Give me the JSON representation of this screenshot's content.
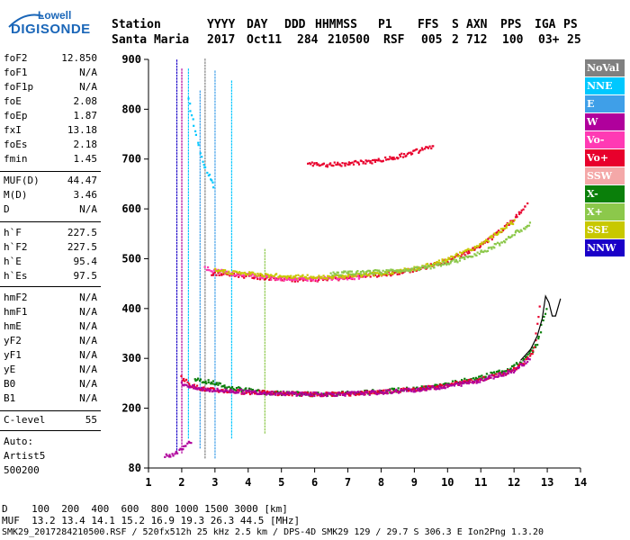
{
  "logo": {
    "line1": "Lowell",
    "line2": "DIGISONDE"
  },
  "header": {
    "labels": [
      "Station",
      "YYYY",
      "DAY",
      "DDD",
      "HHMMSS",
      "P1",
      "FFS",
      "S",
      "AXN",
      "PPS",
      "IGA",
      "PS"
    ],
    "values": [
      "Santa Maria",
      "2017",
      "Oct11",
      "284",
      "210500",
      "RSF",
      "005",
      "2",
      "712",
      "100",
      "03+",
      "25"
    ]
  },
  "params_group1": [
    {
      "label": "foF2",
      "value": "12.850"
    },
    {
      "label": "foF1",
      "value": "N/A"
    },
    {
      "label": "foF1p",
      "value": "N/A"
    },
    {
      "label": "foE",
      "value": "2.08"
    },
    {
      "label": "foEp",
      "value": "1.87"
    },
    {
      "label": "fxI",
      "value": "13.18"
    },
    {
      "label": "foEs",
      "value": "2.18"
    },
    {
      "label": "fmin",
      "value": "1.45"
    }
  ],
  "params_group2": [
    {
      "label": "MUF(D)",
      "value": "44.47"
    },
    {
      "label": "M(D)",
      "value": "3.46"
    },
    {
      "label": "D",
      "value": "N/A"
    }
  ],
  "params_group3": [
    {
      "label": "h`F",
      "value": "227.5"
    },
    {
      "label": "h`F2",
      "value": "227.5"
    },
    {
      "label": "h`E",
      "value": "95.4"
    },
    {
      "label": "h`Es",
      "value": "97.5"
    }
  ],
  "params_group4": [
    {
      "label": "hmF2",
      "value": "N/A"
    },
    {
      "label": "hmF1",
      "value": "N/A"
    },
    {
      "label": "hmE",
      "value": "N/A"
    },
    {
      "label": "yF2",
      "value": "N/A"
    },
    {
      "label": "yF1",
      "value": "N/A"
    },
    {
      "label": "yE",
      "value": "N/A"
    },
    {
      "label": "B0",
      "value": "N/A"
    },
    {
      "label": "B1",
      "value": "N/A"
    }
  ],
  "clevel": {
    "label": "C-level",
    "value": "55"
  },
  "auto": {
    "line1": "Auto:",
    "line2": "Artist5",
    "line3": "500200"
  },
  "legend": [
    {
      "label": "NoVal",
      "color": "#808080"
    },
    {
      "label": "NNE",
      "color": "#00c8ff"
    },
    {
      "label": "E",
      "color": "#3f9fe8"
    },
    {
      "label": "W",
      "color": "#b0009c"
    },
    {
      "label": "Vo-",
      "color": "#ff3ab4"
    },
    {
      "label": "Vo+",
      "color": "#e8002c"
    },
    {
      "label": "SSW",
      "color": "#f4a8a8"
    },
    {
      "label": "X-",
      "color": "#0a7f0a"
    },
    {
      "label": "X+",
      "color": "#8cc84b"
    },
    {
      "label": "SSE",
      "color": "#c8c800"
    },
    {
      "label": "NNW",
      "color": "#1a00c8"
    }
  ],
  "bottom": {
    "line1": "D    100  200  400  600  800 1000 1500 3000 [km]",
    "line2": "MUF  13.2 13.4 14.1 15.2 16.9 19.3 26.3 44.5 [MHz]",
    "line3": "SMK29_2017284210500.RSF / 520fx512h 25 kHz 2.5 km / DPS-4D SMK29 129 / 29.7 S 306.3 E Ion2Png 1.3.20"
  },
  "chart_data": {
    "type": "scatter",
    "xlabel": "",
    "ylabel": "",
    "xlim": [
      1,
      14
    ],
    "ylim": [
      80,
      900
    ],
    "xticks": [
      1,
      2,
      3,
      4,
      5,
      6,
      7,
      8,
      9,
      10,
      11,
      12,
      13,
      14
    ],
    "yticks": [
      80,
      200,
      300,
      400,
      500,
      600,
      700,
      800,
      900
    ],
    "grid": false,
    "legend_position": "right",
    "series": [
      {
        "name": "X-",
        "color": "#0a7f0a",
        "x": [
          2.4,
          3.0,
          3.5,
          4.0,
          4.5,
          5.0,
          6.0,
          7.0,
          8.0,
          9.0,
          10.0,
          11.0,
          11.8,
          12.3,
          12.7,
          13.0
        ],
        "y": [
          258,
          250,
          240,
          236,
          232,
          230,
          228,
          230,
          234,
          239,
          248,
          262,
          278,
          296,
          330,
          410
        ]
      },
      {
        "name": "Vo+",
        "color": "#e8002c",
        "x": [
          2.0,
          2.3,
          2.7,
          3.2,
          4.0,
          5.0,
          6.0,
          7.0,
          8.0,
          9.0,
          10.0,
          11.0,
          11.8,
          12.3,
          12.6,
          12.8
        ],
        "y": [
          262,
          245,
          238,
          235,
          232,
          230,
          228,
          229,
          233,
          238,
          246,
          258,
          272,
          290,
          320,
          410
        ]
      },
      {
        "name": "W",
        "color": "#b0009c",
        "x": [
          2.0,
          2.4,
          3.0,
          4.0,
          5.0,
          6.0,
          7.0,
          8.0,
          9.0,
          10.0,
          11.0,
          12.0,
          12.5
        ],
        "y": [
          250,
          240,
          236,
          233,
          230,
          228,
          229,
          232,
          237,
          244,
          256,
          276,
          300
        ]
      },
      {
        "name": "Vo+",
        "color": "#e8002c",
        "x": [
          2.9,
          3.5,
          4.0,
          4.5,
          5.0,
          5.5,
          6.0,
          6.5,
          7.0,
          7.5,
          8.0,
          8.5,
          9.0,
          9.5,
          10.0,
          10.5,
          11.0,
          11.5,
          12.0,
          12.4
        ],
        "y": [
          470,
          468,
          465,
          462,
          460,
          458,
          458,
          460,
          462,
          466,
          468,
          472,
          478,
          486,
          496,
          510,
          526,
          550,
          580,
          610
        ]
      },
      {
        "name": "Vo-",
        "color": "#ff3ab4",
        "x": [
          2.7,
          3.2,
          3.8,
          4.5,
          5.2,
          6.0,
          6.8,
          7.5
        ],
        "y": [
          480,
          474,
          468,
          463,
          460,
          459,
          461,
          464
        ]
      },
      {
        "name": "SSE",
        "color": "#c8c800",
        "x": [
          3.0,
          4.0,
          5.0,
          6.0,
          7.0,
          8.0,
          9.0,
          10.0,
          11.0,
          12.0
        ],
        "y": [
          476,
          470,
          465,
          463,
          466,
          470,
          480,
          498,
          528,
          575
        ]
      },
      {
        "name": "X+",
        "color": "#8cc84b",
        "x": [
          6.5,
          7.5,
          8.5,
          9.5,
          10.5,
          11.5,
          12.5
        ],
        "y": [
          470,
          472,
          476,
          484,
          500,
          528,
          570
        ]
      },
      {
        "name": "Vo+",
        "color": "#e8002c",
        "x": [
          5.8,
          6.2,
          6.8,
          7.2,
          7.8,
          8.3,
          8.8,
          9.2,
          9.6
        ],
        "y": [
          690,
          688,
          690,
          692,
          696,
          702,
          710,
          718,
          726
        ]
      },
      {
        "name": "W",
        "color": "#b0009c",
        "x": [
          1.5,
          1.6,
          1.7,
          1.8,
          1.9,
          2.0,
          2.1,
          2.2,
          2.3
        ],
        "y": [
          104,
          104,
          106,
          108,
          112,
          118,
          124,
          130,
          136
        ]
      },
      {
        "name": "NNE",
        "color": "#00c8ff",
        "x": [
          2.2,
          2.4,
          2.6,
          3.0
        ],
        "y": [
          820,
          760,
          700,
          640
        ]
      }
    ],
    "verticals": [
      {
        "x": 1.85,
        "y0": 110,
        "y1": 900,
        "color": "#1a00c8"
      },
      {
        "x": 2.0,
        "y0": 110,
        "y1": 880,
        "color": "#b0009c"
      },
      {
        "x": 2.2,
        "y0": 140,
        "y1": 880,
        "color": "#00c8ff"
      },
      {
        "x": 2.55,
        "y0": 120,
        "y1": 840,
        "color": "#3f9fe8"
      },
      {
        "x": 2.7,
        "y0": 100,
        "y1": 900,
        "color": "#808080"
      },
      {
        "x": 3.0,
        "y0": 100,
        "y1": 880,
        "color": "#3f9fe8"
      },
      {
        "x": 3.5,
        "y0": 140,
        "y1": 860,
        "color": "#00c8ff"
      },
      {
        "x": 4.5,
        "y0": 150,
        "y1": 520,
        "color": "#8cc84b"
      }
    ],
    "f2_trace": {
      "color": "#000000",
      "x": [
        12.2,
        12.5,
        12.7,
        12.85,
        12.95,
        13.05,
        13.15,
        13.25,
        13.4
      ],
      "y": [
        296,
        318,
        345,
        380,
        425,
        412,
        385,
        385,
        420
      ]
    }
  }
}
